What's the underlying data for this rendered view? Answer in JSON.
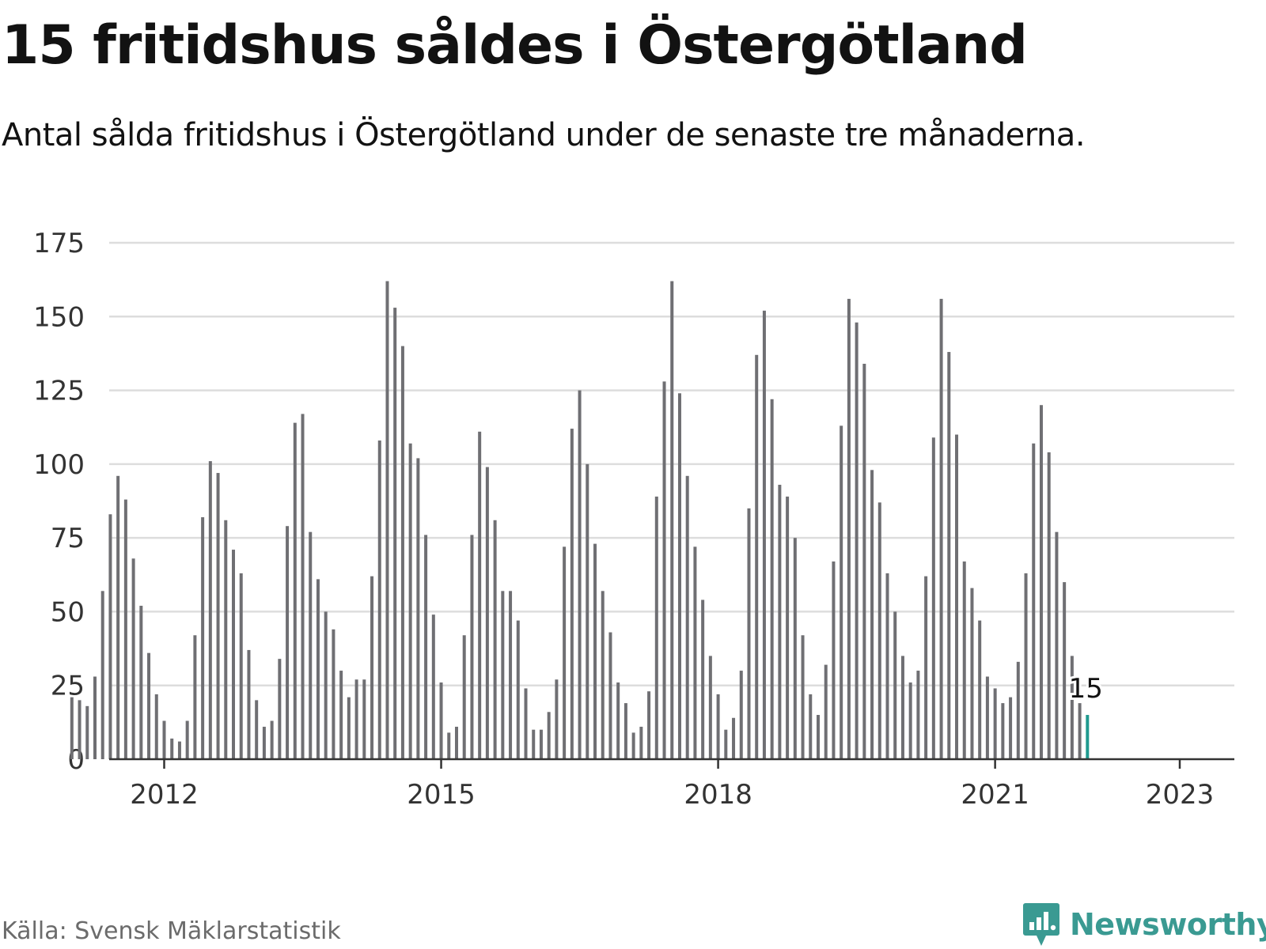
{
  "title": "15 fritidshus såldes i Östergötland",
  "subtitle": "Antal sålda fritidshus i Östergötland under de senaste tre månaderna.",
  "source": "Källa: Svensk Mäklarstatistik",
  "brand": {
    "name": "Newsworthy",
    "icon": "newsworthy-logo-icon"
  },
  "colors": {
    "bar": "#6f6f73",
    "highlight": "#1f9a8f",
    "grid": "#dddddd",
    "axis": "#333333",
    "brand": "#3a9a92"
  },
  "chart_data": {
    "type": "bar",
    "title": "15 fritidshus såldes i Östergötland",
    "ylim": [
      0,
      175
    ],
    "yticks": [
      "0",
      "25",
      "50",
      "75",
      "100",
      "125",
      "150",
      "175"
    ],
    "xticks": [
      "2012",
      "2015",
      "2018",
      "2021",
      "2023"
    ],
    "grid": true,
    "start": "2011-01",
    "end": "2023-01",
    "values": [
      21,
      20,
      18,
      28,
      57,
      83,
      96,
      88,
      68,
      52,
      36,
      22,
      13,
      7,
      6,
      13,
      42,
      82,
      101,
      97,
      81,
      71,
      63,
      37,
      20,
      11,
      13,
      34,
      79,
      114,
      117,
      77,
      61,
      50,
      44,
      30,
      21,
      27,
      27,
      62,
      108,
      162,
      153,
      140,
      107,
      102,
      76,
      49,
      26,
      9,
      11,
      42,
      76,
      111,
      99,
      81,
      57,
      57,
      47,
      24,
      10,
      10,
      16,
      27,
      72,
      112,
      125,
      100,
      73,
      57,
      43,
      26,
      19,
      9,
      11,
      23,
      89,
      128,
      162,
      124,
      96,
      72,
      54,
      35,
      22,
      10,
      14,
      30,
      85,
      137,
      152,
      122,
      93,
      89,
      75,
      42,
      22,
      15,
      32,
      67,
      113,
      156,
      148,
      134,
      98,
      87,
      63,
      50,
      35,
      26,
      30,
      62,
      109,
      156,
      138,
      110,
      67,
      58,
      47,
      28,
      24,
      19,
      21,
      33,
      63,
      107,
      120,
      104,
      77,
      60,
      35,
      19,
      15
    ],
    "highlight_label": "15"
  }
}
